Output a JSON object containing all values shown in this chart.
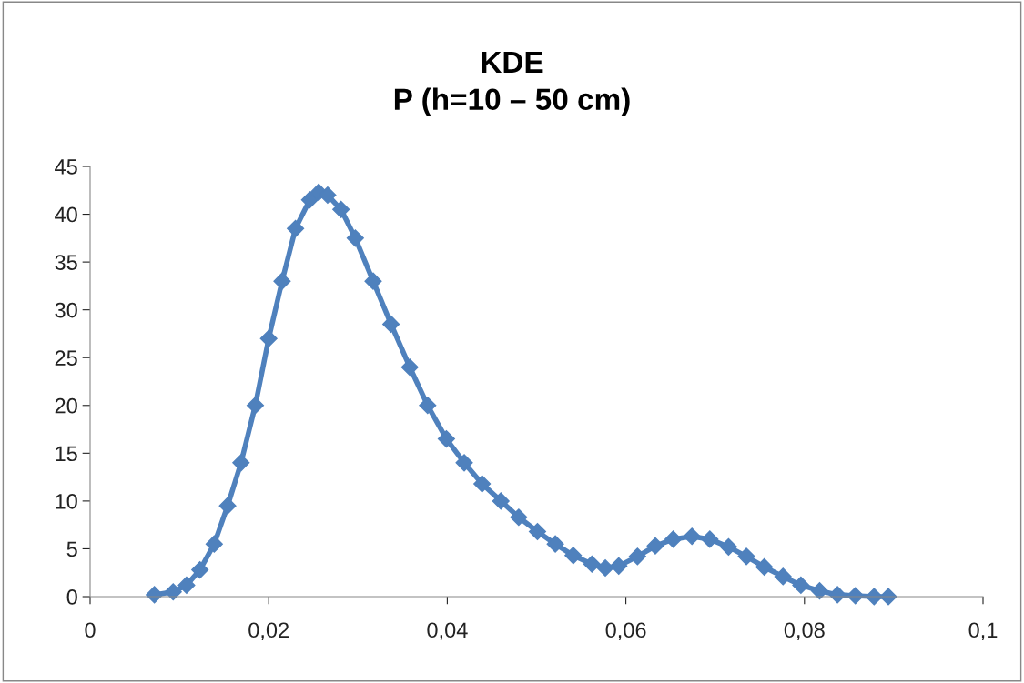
{
  "chart_data": {
    "type": "line",
    "title": "KDE\nP (h=10 – 50 cm)",
    "marker": "diamond",
    "grid": false,
    "x": [
      0.0072,
      0.0093,
      0.0108,
      0.0123,
      0.0139,
      0.0154,
      0.0169,
      0.0185,
      0.02,
      0.0215,
      0.023,
      0.0246,
      0.0256,
      0.0266,
      0.0281,
      0.0297,
      0.0317,
      0.0337,
      0.0358,
      0.0378,
      0.0399,
      0.0419,
      0.0439,
      0.046,
      0.048,
      0.0501,
      0.0521,
      0.0541,
      0.0562,
      0.0577,
      0.0592,
      0.0613,
      0.0633,
      0.0653,
      0.0674,
      0.0694,
      0.0715,
      0.0735,
      0.0755,
      0.0776,
      0.0796,
      0.0817,
      0.0837,
      0.0857,
      0.0878,
      0.0894
    ],
    "series": [
      {
        "color": "#4f81bd",
        "values": [
          0.2,
          0.5,
          1.2,
          2.8,
          5.5,
          9.5,
          14,
          20,
          27,
          33,
          38.5,
          41.5,
          42.3,
          42,
          40.5,
          37.5,
          33,
          28.5,
          24,
          20,
          16.5,
          14,
          11.8,
          10,
          8.3,
          6.8,
          5.5,
          4.3,
          3.4,
          3.0,
          3.2,
          4.2,
          5.3,
          6.0,
          6.3,
          6.0,
          5.2,
          4.2,
          3.1,
          2.1,
          1.2,
          0.6,
          0.2,
          0.1,
          0.0,
          0.0
        ]
      }
    ],
    "xlim": [
      0,
      0.1
    ],
    "ylim": [
      0,
      45
    ],
    "xticks": [
      0,
      {
        "value": 0.02,
        "label": "0,02"
      },
      {
        "value": 0.04,
        "label": "0,04"
      },
      {
        "value": 0.06,
        "label": "0,06"
      },
      {
        "value": 0.08,
        "label": "0,08"
      },
      {
        "value": 0.1,
        "label": "0,1"
      }
    ],
    "yticks": [
      0,
      5,
      10,
      15,
      20,
      25,
      30,
      35,
      40,
      45
    ]
  }
}
